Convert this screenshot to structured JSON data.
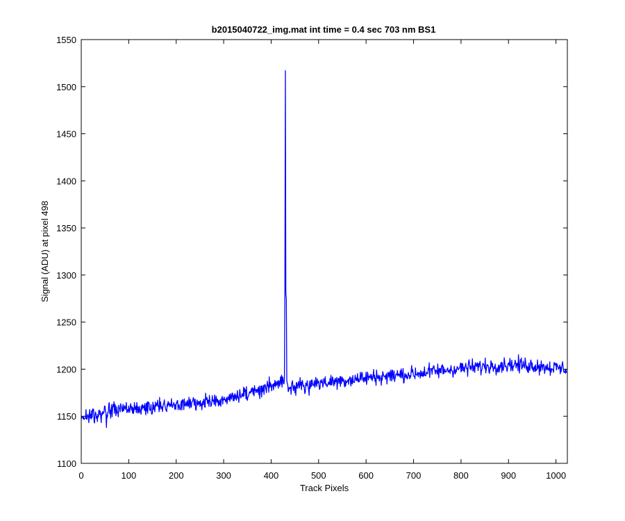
{
  "chart_data": {
    "type": "line",
    "title": "b2015040722_img.mat int time = 0.4 sec  703 nm BS1",
    "xlabel": "Track Pixels",
    "ylabel": "Signal (ADU) at pixel 498",
    "xlim": [
      0,
      1024
    ],
    "ylim": [
      1100,
      1550
    ],
    "xticks": [
      0,
      100,
      200,
      300,
      400,
      500,
      600,
      700,
      800,
      900,
      1000
    ],
    "yticks": [
      1100,
      1150,
      1200,
      1250,
      1300,
      1350,
      1400,
      1450,
      1500,
      1550
    ],
    "grid": false,
    "line_color": "#0000ff",
    "series": [
      {
        "color": "#0000ff",
        "trend_x": [
          0,
          50,
          100,
          200,
          300,
          350,
          400,
          425,
          440,
          500,
          550,
          600,
          700,
          800,
          900,
          950,
          1024
        ],
        "trend_y": [
          1146,
          1155,
          1157,
          1161,
          1168,
          1175,
          1181,
          1185,
          1181,
          1185,
          1188,
          1191,
          1195,
          1201,
          1205,
          1204,
          1200
        ],
        "noise_amplitude": 6,
        "dips_x": [
          53
        ],
        "dips_y": [
          1138
        ],
        "spike_x": [
          428,
          429,
          430,
          431,
          432,
          433
        ],
        "spike_y": [
          1190,
          1290,
          1517,
          1280,
          1275,
          1188
        ]
      }
    ]
  }
}
